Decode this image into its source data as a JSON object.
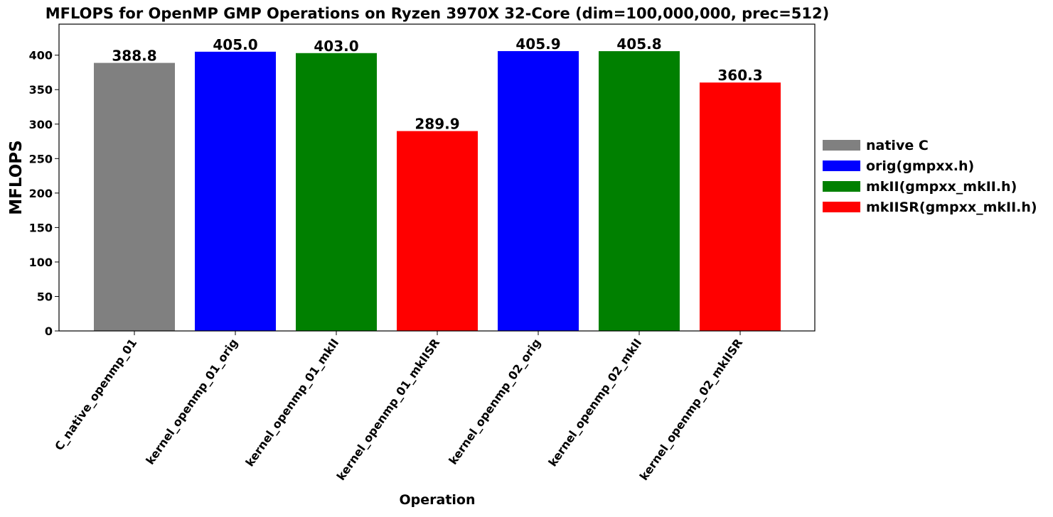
{
  "chart_data": {
    "type": "bar",
    "title": "MFLOPS for OpenMP GMP Operations on Ryzen 3970X 32-Core (dim=100,000,000, prec=512)",
    "xlabel": "Operation",
    "ylabel": "MFLOPS",
    "ylim": [
      0,
      445
    ],
    "yticks": [
      0,
      50,
      100,
      150,
      200,
      250,
      300,
      350,
      400
    ],
    "grid": false,
    "legend_position": "outside-right",
    "categories": [
      "C_native_openmp_01",
      "kernel_openmp_01_orig",
      "kernel_openmp_01_mkII",
      "kernel_openmp_01_mkIISR",
      "kernel_openmp_02_orig",
      "kernel_openmp_02_mkII",
      "kernel_openmp_02_mkIISR"
    ],
    "values": [
      388.8,
      405.0,
      403.0,
      289.9,
      405.9,
      405.8,
      360.3
    ],
    "value_labels": [
      "388.8",
      "405.0",
      "403.0",
      "289.9",
      "405.9",
      "405.8",
      "360.3"
    ],
    "bar_series": [
      "native C",
      "orig(gmpxx.h)",
      "mkII(gmpxx_mkII.h)",
      "mkIISR(gmpxx_mkII.h)",
      "orig(gmpxx.h)",
      "mkII(gmpxx_mkII.h)",
      "mkIISR(gmpxx_mkII.h)"
    ],
    "legend": [
      {
        "name": "native C",
        "color": "#808080"
      },
      {
        "name": "orig(gmpxx.h)",
        "color": "#0000ff"
      },
      {
        "name": "mkII(gmpxx_mkII.h)",
        "color": "#008000"
      },
      {
        "name": "mkIISR(gmpxx_mkII.h)",
        "color": "#ff0000"
      }
    ]
  }
}
